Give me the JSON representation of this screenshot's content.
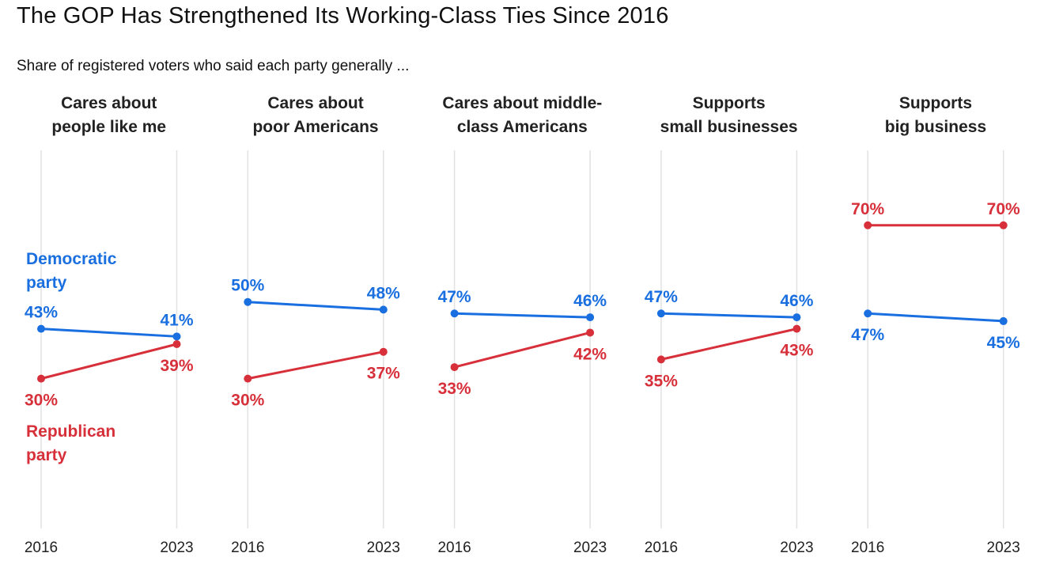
{
  "chart_data": {
    "type": "line",
    "title": "The GOP Has Strengthened Its Working-Class Ties Since 2016",
    "subtitle": "Share of registered voters who said each party generally ...",
    "x": [
      "2016",
      "2023"
    ],
    "ylim": [
      0,
      100
    ],
    "grid": true,
    "unit": "%",
    "colors": {
      "Democratic party": "#1a6fe0",
      "Republican party": "#d7303a"
    },
    "legend": {
      "dem_lines": [
        "Democratic",
        "party"
      ],
      "rep_lines": [
        "Republican",
        "party"
      ],
      "placement": "inline-left"
    },
    "panels": [
      {
        "title_lines": [
          "Cares about",
          "people like me"
        ],
        "dem": [
          43,
          41
        ],
        "rep": [
          30,
          39
        ]
      },
      {
        "title_lines": [
          "Cares about",
          "poor Americans"
        ],
        "dem": [
          50,
          48
        ],
        "rep": [
          30,
          37
        ]
      },
      {
        "title_lines": [
          "Cares about middle-",
          "class Americans"
        ],
        "dem": [
          47,
          46
        ],
        "rep": [
          33,
          42
        ]
      },
      {
        "title_lines": [
          "Supports",
          "small businesses"
        ],
        "dem": [
          47,
          46
        ],
        "rep": [
          35,
          43
        ]
      },
      {
        "title_lines": [
          "Supports",
          "big business"
        ],
        "dem": [
          47,
          45
        ],
        "rep": [
          70,
          70
        ]
      }
    ]
  }
}
